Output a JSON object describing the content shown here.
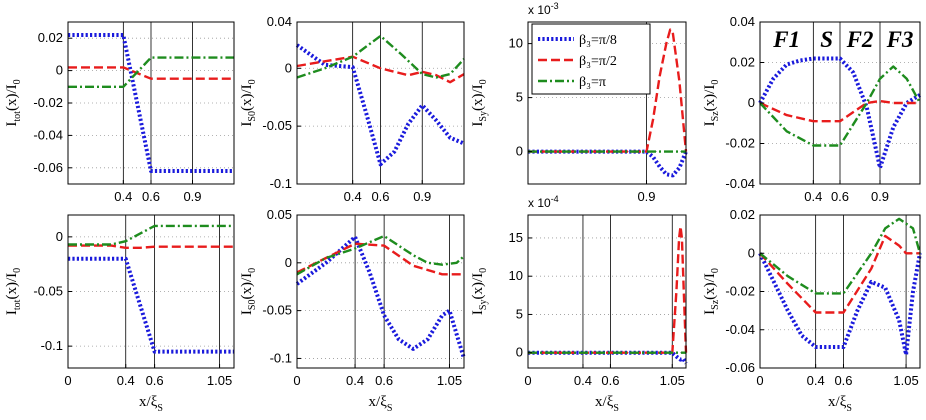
{
  "colors": {
    "blue": "#1a1adc",
    "red": "#e81c1c",
    "green": "#1e8c1e"
  },
  "legend": [
    {
      "series": "s1",
      "label": "β₃=π/8"
    },
    {
      "series": "s2",
      "label": "β₃=π/2"
    },
    {
      "series": "s3",
      "label": "β₃=π"
    }
  ],
  "region_labels": [
    "F1",
    "S",
    "F2",
    "F3"
  ],
  "chart_data": [
    {
      "type": "line",
      "ylabel": "I",
      "ylabel_sub": "tot",
      "ylabel_rest": "(x)/I",
      "ylabel_sub2": "0",
      "xlim": [
        0,
        1.2
      ],
      "ylim": [
        -0.07,
        0.03
      ],
      "multiplier": "",
      "yticks": [
        {
          "v": 0.02,
          "t": "0.02"
        },
        {
          "v": 0,
          "t": "0"
        },
        {
          "v": -0.02,
          "t": "-0.02"
        },
        {
          "v": -0.04,
          "t": "-0.04"
        },
        {
          "v": -0.06,
          "t": "-0.06"
        }
      ],
      "xticks": [
        {
          "v": 0.4,
          "t": "0.4"
        },
        {
          "v": 0.6,
          "t": "0.6"
        },
        {
          "v": 0.9,
          "t": "0.9"
        }
      ],
      "vlines": [
        0.4,
        0.6,
        0.9
      ],
      "series": [
        {
          "name": "s1",
          "x": [
            0,
            0.4,
            0.6,
            1.2
          ],
          "y": [
            0.022,
            0.022,
            -0.062,
            -0.062
          ]
        },
        {
          "name": "s2",
          "x": [
            0,
            0.4,
            0.6,
            1.2
          ],
          "y": [
            0.002,
            0.002,
            -0.005,
            -0.005
          ]
        },
        {
          "name": "s3",
          "x": [
            0,
            0.4,
            0.6,
            1.2
          ],
          "y": [
            -0.01,
            -0.01,
            0.008,
            0.008
          ]
        }
      ]
    },
    {
      "type": "line",
      "ylabel": "I",
      "ylabel_sub": "S0",
      "ylabel_rest": "(x)/I",
      "ylabel_sub2": "0",
      "xlim": [
        0,
        1.2
      ],
      "ylim": [
        -0.1,
        0.04
      ],
      "multiplier": "",
      "yticks": [
        {
          "v": 0.04,
          "t": "0.04"
        },
        {
          "v": 0,
          "t": "0"
        },
        {
          "v": -0.05,
          "t": "-0.05"
        },
        {
          "v": -0.1,
          "t": "-0.1"
        }
      ],
      "xticks": [
        {
          "v": 0.4,
          "t": "0.4"
        },
        {
          "v": 0.6,
          "t": "0.6"
        },
        {
          "v": 0.9,
          "t": "0.9"
        }
      ],
      "vlines": [
        0.4,
        0.6,
        0.9
      ],
      "series": [
        {
          "name": "s1",
          "x": [
            0,
            0.2,
            0.4,
            0.5,
            0.6,
            0.7,
            0.8,
            0.9,
            1.0,
            1.1,
            1.2
          ],
          "y": [
            0.02,
            0.003,
            0.001,
            -0.04,
            -0.083,
            -0.072,
            -0.048,
            -0.032,
            -0.045,
            -0.06,
            -0.065
          ]
        },
        {
          "name": "s2",
          "x": [
            0,
            0.2,
            0.4,
            0.6,
            0.8,
            0.9,
            1.0,
            1.1,
            1.2
          ],
          "y": [
            0.002,
            0.006,
            0.01,
            0.0,
            -0.006,
            -0.003,
            -0.006,
            -0.012,
            -0.005
          ]
        },
        {
          "name": "s3",
          "x": [
            0,
            0.2,
            0.4,
            0.6,
            0.75,
            0.9,
            1.0,
            1.1,
            1.2
          ],
          "y": [
            -0.008,
            0.0,
            0.01,
            0.028,
            0.012,
            -0.005,
            -0.008,
            -0.005,
            0.008
          ]
        }
      ]
    },
    {
      "type": "line",
      "ylabel": "I",
      "ylabel_sub": "Sy",
      "ylabel_rest": "(x)/I",
      "ylabel_sub2": "0",
      "xlim": [
        0,
        1.2
      ],
      "ylim": [
        -3,
        12
      ],
      "multiplier": "x 10-3",
      "yticks": [
        {
          "v": 10,
          "t": "10"
        },
        {
          "v": 5,
          "t": "5"
        },
        {
          "v": 0,
          "t": "0"
        }
      ],
      "xticks": [
        {
          "v": 0.9,
          "t": "0.9"
        }
      ],
      "vlines": [
        0.9
      ],
      "series": [
        {
          "name": "s1",
          "x": [
            0,
            0.9,
            0.95,
            1.0,
            1.05,
            1.1,
            1.15,
            1.2
          ],
          "y": [
            0,
            0,
            -0.5,
            -1.4,
            -2.1,
            -2.2,
            -1.5,
            0
          ]
        },
        {
          "name": "s2",
          "x": [
            0,
            0.9,
            0.95,
            1.0,
            1.05,
            1.08,
            1.1,
            1.15,
            1.2
          ],
          "y": [
            0,
            0,
            3,
            7,
            10,
            11.3,
            11,
            6.5,
            0
          ]
        },
        {
          "name": "s3",
          "x": [
            0,
            1.2
          ],
          "y": [
            0,
            0
          ]
        }
      ]
    },
    {
      "type": "line",
      "ylabel": "I",
      "ylabel_sub": "Sz",
      "ylabel_rest": "(x)/I",
      "ylabel_sub2": "0",
      "xlim": [
        0,
        1.2
      ],
      "ylim": [
        -0.04,
        0.04
      ],
      "multiplier": "",
      "yticks": [
        {
          "v": 0.04,
          "t": "0.04"
        },
        {
          "v": 0.02,
          "t": "0.02"
        },
        {
          "v": 0,
          "t": "0"
        },
        {
          "v": -0.02,
          "t": "-0.02"
        },
        {
          "v": -0.04,
          "t": "-0.04"
        }
      ],
      "xticks": [
        {
          "v": 0.4,
          "t": "0.4"
        },
        {
          "v": 0.6,
          "t": "0.6"
        },
        {
          "v": 0.9,
          "t": "0.9"
        }
      ],
      "vlines": [
        0.4,
        0.6,
        0.9
      ],
      "series": [
        {
          "name": "s1",
          "x": [
            0,
            0.1,
            0.2,
            0.3,
            0.4,
            0.6,
            0.7,
            0.8,
            0.9,
            1.0,
            1.1,
            1.2
          ],
          "y": [
            0,
            0.012,
            0.019,
            0.021,
            0.022,
            0.022,
            0.015,
            -0.002,
            -0.032,
            -0.012,
            0.0,
            0.004
          ]
        },
        {
          "name": "s2",
          "x": [
            0,
            0.2,
            0.4,
            0.6,
            0.8,
            0.9,
            1.0,
            1.2
          ],
          "y": [
            0,
            -0.006,
            -0.009,
            -0.009,
            0.0,
            0.001,
            0.0,
            0.0
          ]
        },
        {
          "name": "s3",
          "x": [
            0,
            0.2,
            0.4,
            0.6,
            0.8,
            0.9,
            1.0,
            1.1,
            1.2
          ],
          "y": [
            0,
            -0.014,
            -0.021,
            -0.021,
            0.0,
            0.012,
            0.018,
            0.012,
            0.0
          ]
        }
      ]
    },
    {
      "type": "line",
      "ylabel": "I",
      "ylabel_sub": "tot",
      "ylabel_rest": "(x)/I",
      "ylabel_sub2": "0",
      "xlim": [
        0,
        1.15
      ],
      "ylim": [
        -0.12,
        0.02
      ],
      "multiplier": "",
      "yticks": [
        {
          "v": 0,
          "t": "0"
        },
        {
          "v": -0.05,
          "t": "-0.05"
        },
        {
          "v": -0.1,
          "t": "-0.1"
        }
      ],
      "xticks": [
        {
          "v": 0,
          "t": "0"
        },
        {
          "v": 0.4,
          "t": "0.4"
        },
        {
          "v": 0.6,
          "t": "0.6"
        },
        {
          "v": 1.05,
          "t": "1.05"
        }
      ],
      "vlines": [
        0.4,
        0.6,
        1.05
      ],
      "series": [
        {
          "name": "s1",
          "x": [
            0,
            0.4,
            0.6,
            1.15
          ],
          "y": [
            -0.02,
            -0.02,
            -0.105,
            -0.105
          ]
        },
        {
          "name": "s2",
          "x": [
            0,
            0.3,
            0.4,
            0.5,
            0.6,
            1.15
          ],
          "y": [
            -0.008,
            -0.008,
            -0.01,
            -0.01,
            -0.009,
            -0.009
          ]
        },
        {
          "name": "s3",
          "x": [
            0,
            0.3,
            0.4,
            0.6,
            1.15
          ],
          "y": [
            -0.007,
            -0.007,
            -0.004,
            0.01,
            0.01
          ]
        }
      ]
    },
    {
      "type": "line",
      "ylabel": "I",
      "ylabel_sub": "S0",
      "ylabel_rest": "(x)/I",
      "ylabel_sub2": "0",
      "xlim": [
        0,
        1.15
      ],
      "ylim": [
        -0.11,
        0.05
      ],
      "multiplier": "",
      "yticks": [
        {
          "v": 0.05,
          "t": "0.05"
        },
        {
          "v": 0,
          "t": "0"
        },
        {
          "v": -0.05,
          "t": "-0.05"
        },
        {
          "v": -0.1,
          "t": "-0.1"
        }
      ],
      "xticks": [
        {
          "v": 0,
          "t": "0"
        },
        {
          "v": 0.4,
          "t": "0.4"
        },
        {
          "v": 0.6,
          "t": "0.6"
        },
        {
          "v": 1.05,
          "t": "1.05"
        }
      ],
      "vlines": [
        0.4,
        0.6,
        1.05
      ],
      "series": [
        {
          "name": "s1",
          "x": [
            0,
            0.2,
            0.4,
            0.5,
            0.6,
            0.7,
            0.8,
            0.9,
            1.0,
            1.05,
            1.1,
            1.15
          ],
          "y": [
            -0.022,
            0.0,
            0.027,
            -0.01,
            -0.055,
            -0.08,
            -0.09,
            -0.08,
            -0.055,
            -0.05,
            -0.075,
            -0.1
          ]
        },
        {
          "name": "s2",
          "x": [
            0,
            0.2,
            0.4,
            0.6,
            0.8,
            1.0,
            1.05,
            1.15
          ],
          "y": [
            -0.01,
            0.005,
            0.02,
            0.018,
            -0.003,
            -0.012,
            -0.012,
            -0.012
          ]
        },
        {
          "name": "s3",
          "x": [
            0,
            0.2,
            0.4,
            0.6,
            0.8,
            0.9,
            1.0,
            1.1,
            1.15
          ],
          "y": [
            -0.012,
            0.005,
            0.015,
            0.028,
            0.008,
            0.0,
            -0.002,
            0.0,
            0.007
          ]
        }
      ]
    },
    {
      "type": "line",
      "ylabel": "I",
      "ylabel_sub": "Sy",
      "ylabel_rest": "(x)/I",
      "ylabel_sub2": "0",
      "xlim": [
        0,
        1.15
      ],
      "ylim": [
        -2,
        18
      ],
      "multiplier": "x 10-4",
      "yticks": [
        {
          "v": 15,
          "t": "15"
        },
        {
          "v": 10,
          "t": "10"
        },
        {
          "v": 5,
          "t": "5"
        },
        {
          "v": 0,
          "t": "0"
        }
      ],
      "xticks": [
        {
          "v": 0,
          "t": "0"
        },
        {
          "v": 0.4,
          "t": "0.4"
        },
        {
          "v": 0.6,
          "t": "0.6"
        },
        {
          "v": 1.05,
          "t": "1.05"
        }
      ],
      "vlines": [
        0.4,
        0.6,
        1.05
      ],
      "series": [
        {
          "name": "s1",
          "x": [
            0,
            1.05,
            1.08,
            1.11,
            1.13,
            1.15
          ],
          "y": [
            0,
            0,
            -0.5,
            -0.9,
            -0.8,
            -1.4
          ]
        },
        {
          "name": "s2",
          "x": [
            0,
            1.05,
            1.08,
            1.1,
            1.11,
            1.12,
            1.14,
            1.15
          ],
          "y": [
            0,
            0,
            8,
            15,
            16.5,
            15,
            5,
            0
          ]
        },
        {
          "name": "s3",
          "x": [
            0,
            1.15
          ],
          "y": [
            0,
            0
          ]
        }
      ]
    },
    {
      "type": "line",
      "ylabel": "I",
      "ylabel_sub": "Sz",
      "ylabel_rest": "(x)/I",
      "ylabel_sub2": "0",
      "xlim": [
        0,
        1.15
      ],
      "ylim": [
        -0.06,
        0.02
      ],
      "multiplier": "",
      "yticks": [
        {
          "v": 0.02,
          "t": "0.02"
        },
        {
          "v": 0,
          "t": "0"
        },
        {
          "v": -0.02,
          "t": "-0.02"
        },
        {
          "v": -0.04,
          "t": "-0.04"
        },
        {
          "v": -0.06,
          "t": "-0.06"
        }
      ],
      "xticks": [
        {
          "v": 0,
          "t": "0"
        },
        {
          "v": 0.4,
          "t": "0.4"
        },
        {
          "v": 0.6,
          "t": "0.6"
        },
        {
          "v": 1.05,
          "t": "1.05"
        }
      ],
      "vlines": [
        0.4,
        0.6,
        1.05
      ],
      "series": [
        {
          "name": "s1",
          "x": [
            0,
            0.1,
            0.2,
            0.3,
            0.4,
            0.6,
            0.7,
            0.8,
            0.9,
            1.0,
            1.05,
            1.1,
            1.15
          ],
          "y": [
            0,
            -0.015,
            -0.03,
            -0.043,
            -0.049,
            -0.049,
            -0.03,
            -0.015,
            -0.018,
            -0.035,
            -0.053,
            -0.02,
            0.0
          ]
        },
        {
          "name": "s2",
          "x": [
            0,
            0.2,
            0.4,
            0.6,
            0.8,
            0.9,
            1.0,
            1.05,
            1.15
          ],
          "y": [
            0,
            -0.016,
            -0.031,
            -0.031,
            -0.008,
            0.009,
            0.004,
            0.0,
            0.0
          ]
        },
        {
          "name": "s3",
          "x": [
            0,
            0.2,
            0.4,
            0.6,
            0.8,
            0.9,
            1.0,
            1.1,
            1.15
          ],
          "y": [
            0,
            -0.012,
            -0.021,
            -0.021,
            0.0,
            0.013,
            0.018,
            0.013,
            0.0
          ]
        }
      ]
    }
  ],
  "xlabel": {
    "main": "x/ξ",
    "sub": "S"
  }
}
